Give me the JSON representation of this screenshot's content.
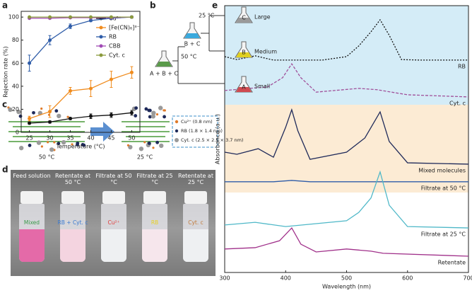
{
  "panels": [
    "a",
    "b",
    "c",
    "d",
    "e"
  ],
  "chart_data": [
    {
      "type": "line",
      "xlabel": "Temperature (°C)",
      "ylabel": "Rejection rate (%)",
      "x": [
        25,
        30,
        35,
        40,
        45,
        50
      ],
      "xlim": [
        23,
        52
      ],
      "xticks": [
        25,
        30,
        35,
        40,
        45,
        50
      ],
      "ylim": [
        0,
        105
      ],
      "yticks": [
        0,
        20,
        40,
        60,
        80,
        100
      ],
      "legend": "upper right",
      "markers": true,
      "series": [
        {
          "name": "Cu²⁺",
          "color": "#111111",
          "values": [
            8,
            9,
            12,
            14,
            15,
            17
          ],
          "errors": [
            1,
            1,
            1,
            2,
            2,
            2
          ]
        },
        {
          "name": "[Fe(CN)₆]³⁻",
          "color": "#f08c1e",
          "values": [
            12,
            18,
            36,
            38,
            46,
            52
          ],
          "errors": [
            2,
            5,
            3,
            7,
            7,
            5
          ]
        },
        {
          "name": "RB",
          "color": "#2e5ca8",
          "values": [
            60,
            80,
            92,
            97,
            99,
            100
          ],
          "errors": [
            7,
            4,
            2,
            1,
            1,
            1
          ]
        },
        {
          "name": "CBB",
          "color": "#a04ab4",
          "values": [
            99,
            99,
            99.5,
            99.5,
            99.5,
            100
          ],
          "errors": [
            0.5,
            0.5,
            0.5,
            0.5,
            0.5,
            0.5
          ]
        },
        {
          "name": "Cyt. c",
          "color": "#8a9a3c",
          "values": [
            100,
            100,
            100,
            100,
            100,
            100
          ],
          "errors": [
            0.5,
            0.5,
            0.5,
            0.5,
            0.5,
            0.5
          ]
        }
      ]
    },
    {
      "type": "line",
      "xlabel": "Wavelength (nm)",
      "ylabel": "Absorbance (a.u.)",
      "xlim": [
        300,
        700
      ],
      "xticks": [
        300,
        400,
        500,
        600,
        700
      ],
      "ylim": [
        0,
        10
      ],
      "markers": false,
      "series": [
        {
          "name": "RB",
          "color": "#111111",
          "dash": "dotted",
          "x": [
            300,
            320,
            350,
            380,
            420,
            460,
            500,
            520,
            540,
            555,
            570,
            590,
            620,
            700
          ],
          "values": [
            8.09,
            7.98,
            8.12,
            7.96,
            7.96,
            7.96,
            8.09,
            8.49,
            9.02,
            9.47,
            8.89,
            7.98,
            7.96,
            7.96
          ]
        },
        {
          "name": "Cyt. c",
          "color": "#a0509a",
          "dash": "dashed",
          "x": [
            300,
            340,
            370,
            395,
            410,
            425,
            450,
            520,
            550,
            600,
            700
          ],
          "values": [
            6.82,
            6.9,
            6.95,
            7.3,
            7.82,
            7.3,
            6.76,
            6.9,
            6.85,
            6.66,
            6.58
          ]
        },
        {
          "name": "Mixed molecules",
          "color": "#1f2a5a",
          "x": [
            300,
            320,
            355,
            380,
            400,
            410,
            420,
            440,
            500,
            530,
            555,
            570,
            600,
            700
          ],
          "values": [
            4.51,
            4.43,
            4.64,
            4.32,
            5.44,
            6.1,
            5.31,
            4.24,
            4.51,
            5.04,
            6.02,
            4.91,
            4.11,
            4.06
          ]
        },
        {
          "name": "Filtrate at 50 °C",
          "color": "#2e5ca8",
          "x": [
            300,
            380,
            410,
            440,
            700
          ],
          "values": [
            3.4,
            3.4,
            3.45,
            3.4,
            3.4
          ]
        },
        {
          "name": "Filtrate at 25 °C",
          "color": "#4fb8c8",
          "x": [
            300,
            350,
            400,
            500,
            520,
            540,
            555,
            570,
            600,
            700
          ],
          "values": [
            1.78,
            1.88,
            1.72,
            1.94,
            2.25,
            2.79,
            3.77,
            2.52,
            1.72,
            1.67
          ]
        },
        {
          "name": "Retentate",
          "color": "#a0308a",
          "x": [
            300,
            350,
            390,
            410,
            425,
            450,
            500,
            540,
            560,
            700
          ],
          "values": [
            0.88,
            0.93,
            1.19,
            1.67,
            1.06,
            0.77,
            0.88,
            0.8,
            0.72,
            0.61
          ]
        }
      ]
    }
  ],
  "diagram_b": {
    "mixture": "A + B + C",
    "step1": "50 °C",
    "intermediate": "B + C",
    "step2": "25 °C",
    "products": [
      {
        "letter": "C",
        "size": "Large"
      },
      {
        "letter": "B",
        "size": "Medium"
      },
      {
        "letter": "A",
        "size": "Small"
      }
    ]
  },
  "diagram_c": {
    "temp_left": "50 °C",
    "temp_right": "25 °C",
    "legend": [
      "Cu²⁺ (0.8 nm)",
      "RB (1.8 × 1.4 nm)",
      "Cyt. c (2.5 × 2.5 × 3.7 nm)"
    ]
  },
  "photo_d": {
    "vials": [
      {
        "caption": "Feed solution",
        "label": "Mixed"
      },
      {
        "caption": "Retentate at 50 °C",
        "label": "RB + Cyt. c"
      },
      {
        "caption": "Filtrate at 50 °C",
        "label": "Cu²⁺"
      },
      {
        "caption": "Filtrate at 25 °C",
        "label": "RB"
      },
      {
        "caption": "Retentate at 25 °C",
        "label": "Cyt. c"
      }
    ]
  }
}
